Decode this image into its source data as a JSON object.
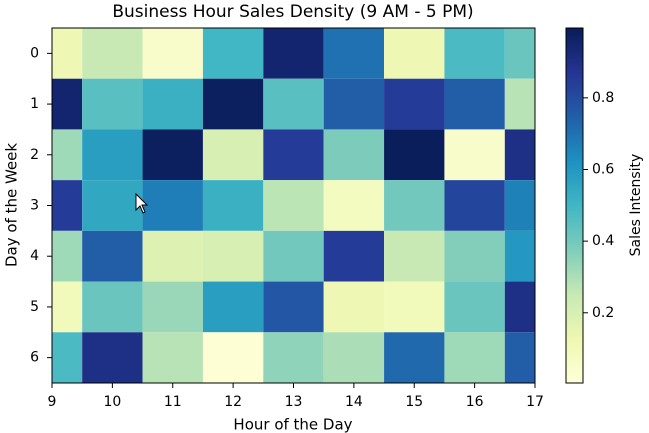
{
  "chart_data": {
    "type": "heatmap",
    "title": "Business Hour Sales Density (9 AM - 5 PM)",
    "x_label": "Hour of the Day",
    "y_label": "Day of the Week",
    "colorbar_label": "Sales Intensity",
    "colormap": "YlGnBu",
    "x": [
      9,
      10,
      11,
      12,
      13,
      14,
      15,
      16,
      17
    ],
    "y": [
      0,
      1,
      2,
      3,
      4,
      5,
      6
    ],
    "values": [
      [
        0.12,
        0.25,
        0.05,
        0.5,
        0.95,
        0.7,
        0.12,
        0.48,
        0.42
      ],
      [
        0.95,
        0.45,
        0.52,
        0.98,
        0.45,
        0.75,
        0.85,
        0.75,
        0.28
      ],
      [
        0.32,
        0.58,
        0.98,
        0.2,
        0.85,
        0.38,
        0.99,
        0.05,
        0.9
      ],
      [
        0.85,
        0.55,
        0.67,
        0.52,
        0.27,
        0.08,
        0.4,
        0.82,
        0.66
      ],
      [
        0.32,
        0.75,
        0.18,
        0.2,
        0.4,
        0.85,
        0.25,
        0.37,
        0.6
      ],
      [
        0.1,
        0.42,
        0.33,
        0.58,
        0.77,
        0.12,
        0.1,
        0.42,
        0.9
      ],
      [
        0.48,
        0.9,
        0.28,
        0.02,
        0.35,
        0.3,
        0.72,
        0.32,
        0.75
      ]
    ],
    "xlim": [
      9,
      17
    ],
    "ylim": [
      6.5,
      -0.5
    ],
    "xticks": [
      9,
      10,
      11,
      12,
      13,
      14,
      15,
      16,
      17
    ],
    "yticks": [
      0,
      1,
      2,
      3,
      4,
      5,
      6
    ],
    "clim": [
      0.004,
      0.995
    ],
    "cticks": [
      0.2,
      0.4,
      0.6,
      0.8
    ]
  }
}
